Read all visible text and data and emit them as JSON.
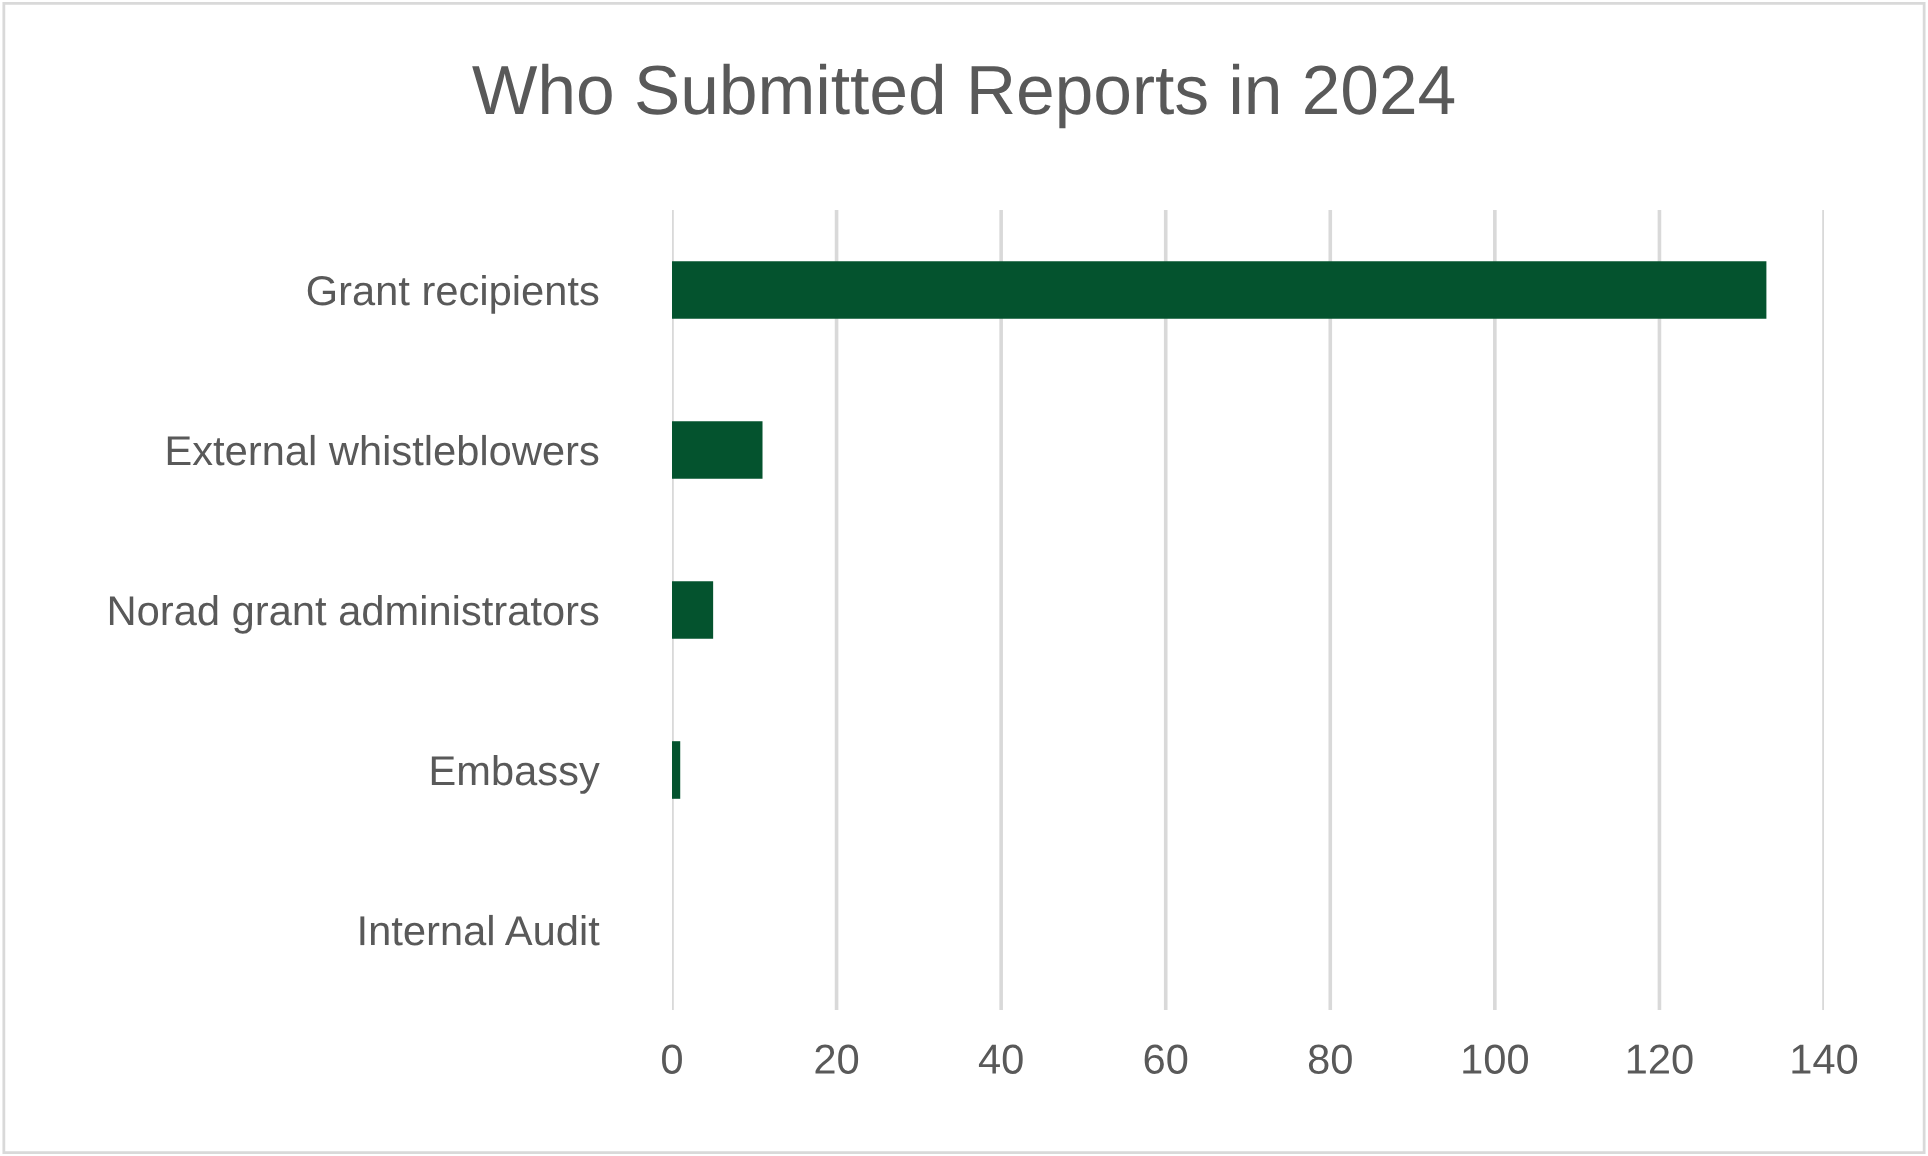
{
  "chart_data": {
    "type": "bar",
    "orientation": "horizontal",
    "title": "Who Submitted Reports in 2024",
    "categories": [
      "Grant recipients",
      "External whistleblowers",
      "Norad grant administrators",
      "Embassy",
      "Internal Audit"
    ],
    "values": [
      133,
      11,
      5,
      1,
      0
    ],
    "color": "#04532e",
    "xlim": [
      0,
      140
    ],
    "xticks": [
      0,
      20,
      40,
      60,
      80,
      100,
      120,
      140
    ],
    "grid": "x",
    "legend": false
  }
}
